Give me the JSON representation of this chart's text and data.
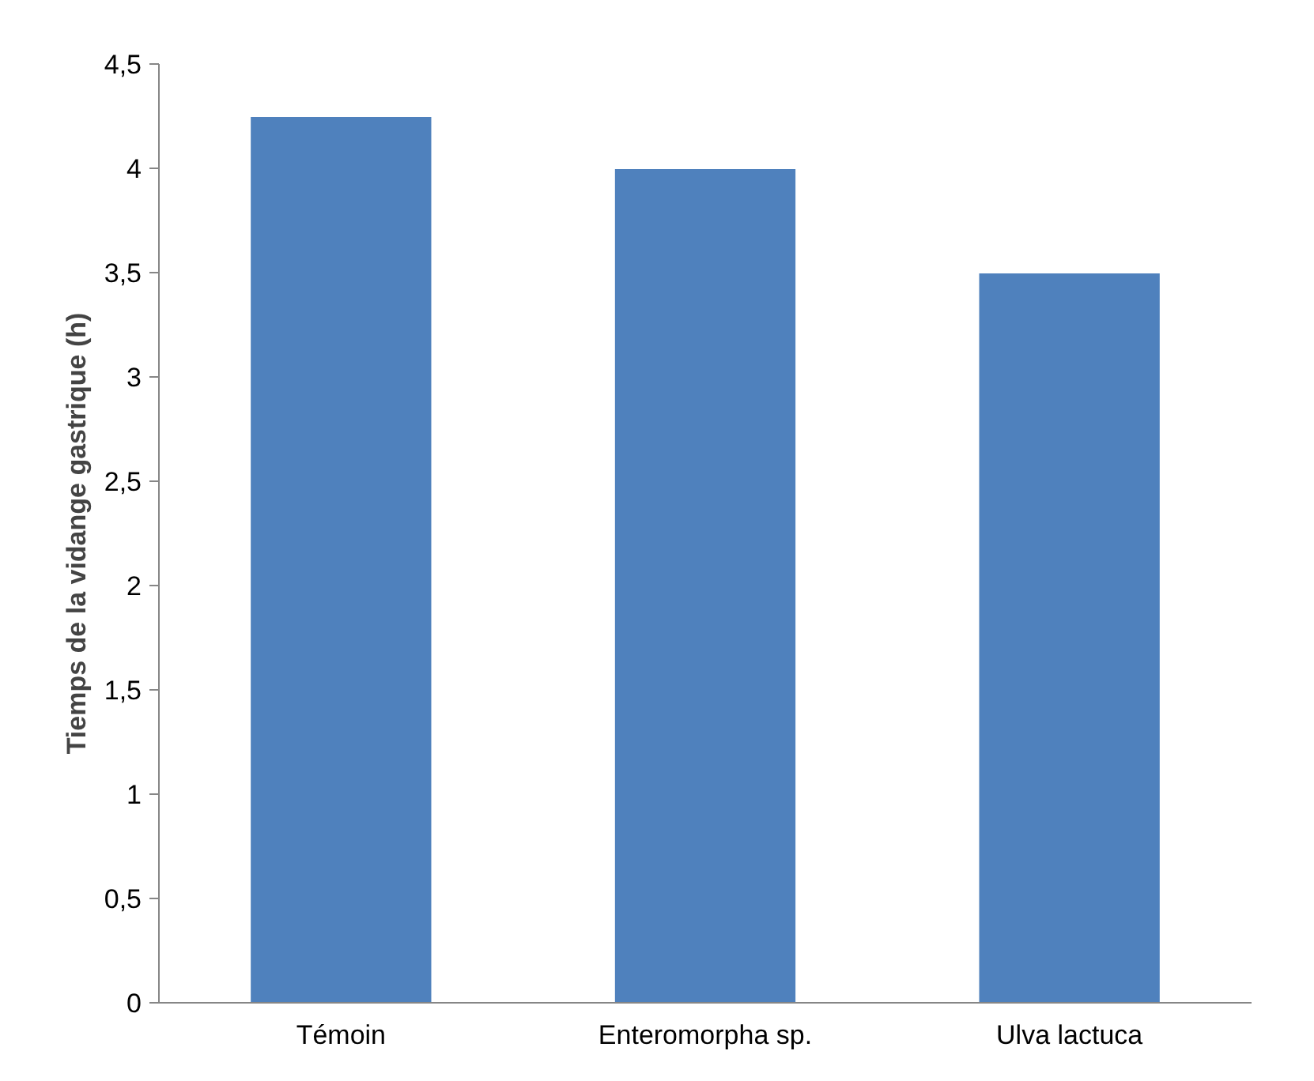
{
  "chart_data": {
    "type": "bar",
    "ylabel": "Tiemps de la vidange gastrique (h)",
    "categories": [
      "Témoin",
      "Enteromorpha sp.",
      "Ulva lactuca"
    ],
    "values": [
      4.25,
      4.0,
      3.5
    ],
    "color": "#4f81bd",
    "ylim": [
      0,
      4.5
    ],
    "yticks": [
      0,
      {
        "value": 0.5,
        "label": "0,5"
      },
      1,
      {
        "value": 1.5,
        "label": "1,5"
      },
      2,
      {
        "value": 2.5,
        "label": "2,5"
      },
      3,
      {
        "value": 3.5,
        "label": "3,5"
      },
      4,
      {
        "value": 4.5,
        "label": "4,5"
      }
    ],
    "grid": false
  }
}
